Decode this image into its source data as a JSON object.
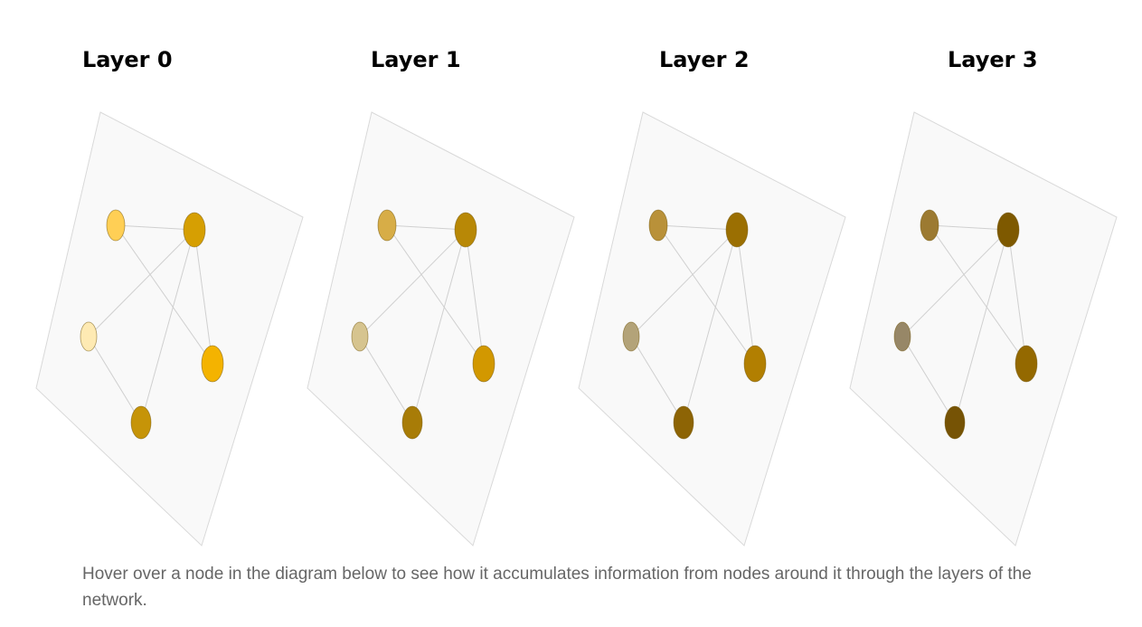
{
  "layers": [
    {
      "title": "Layer 0",
      "node_colors": [
        "#ffcf55",
        "#d69f02",
        "#feeab3",
        "#f4b300",
        "#c69408"
      ]
    },
    {
      "title": "Layer 1",
      "node_colors": [
        "#d7ad47",
        "#b88806",
        "#d6c48f",
        "#d29800",
        "#a87c07"
      ]
    },
    {
      "title": "Layer 2",
      "node_colors": [
        "#b99139",
        "#9b6f02",
        "#b3a379",
        "#b27f01",
        "#8d6405"
      ]
    },
    {
      "title": "Layer 3",
      "node_colors": [
        "#9c7a31",
        "#7e5900",
        "#978767",
        "#946900",
        "#765305"
      ]
    }
  ],
  "graph": {
    "nodes": [
      "n1",
      "n2",
      "n3",
      "n4",
      "n5"
    ],
    "edges": [
      [
        "n1",
        "n2"
      ],
      [
        "n1",
        "n4"
      ],
      [
        "n2",
        "n3"
      ],
      [
        "n2",
        "n4"
      ],
      [
        "n2",
        "n5"
      ],
      [
        "n3",
        "n5"
      ]
    ]
  },
  "caption": "Hover over a node in the diagram below to see how it accumulates information from nodes around it through the layers of the network."
}
